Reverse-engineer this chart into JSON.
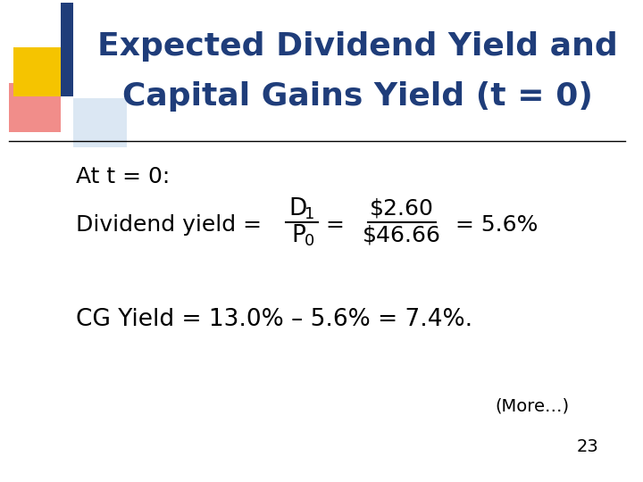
{
  "title_line1": "Expected Dividend Yield and",
  "title_line2": "Capital Gains Yield (t = 0)",
  "title_color": "#1F3D7A",
  "title_fontsize": 26,
  "bg_color": "#FFFFFF",
  "line_color": "#000000",
  "body_color": "#000000",
  "body_fontsize": 18,
  "at_t0_text": "At t = 0:",
  "div_yield_label": "Dividend yield = ",
  "cg_yield_text": "CG Yield = 13.0% – 5.6% = 7.4%.",
  "more_text": "(More…)",
  "page_number": "23",
  "square_gold": "#F5C400",
  "square_red": "#E8413C",
  "square_blue": "#1F3D7A",
  "square_lightblue": "#B8D0E8",
  "square_pink": "#F0A0A0"
}
